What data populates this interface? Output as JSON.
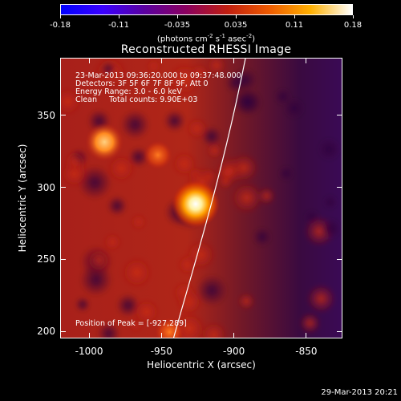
{
  "colorbar": {
    "ticks": [
      "-0.18",
      "-0.11",
      "-0.035",
      "0.035",
      "0.11",
      "0.18"
    ],
    "units_prefix": "(photons cm",
    "units_exp1": "-2",
    "units_mid1": " s",
    "units_exp2": "-1",
    "units_mid2": " asec",
    "units_exp3": "-2",
    "units_suffix": ")",
    "colors": [
      "#0000ff",
      "#3a00ff",
      "#5a00a0",
      "#8a0060",
      "#c01e10",
      "#ee5a00",
      "#ffb000",
      "#ffffff"
    ]
  },
  "title": "Reconstructed RHESSI Image",
  "annotations": {
    "line1": "23-Mar-2013 09:36:20.000 to 09:37:48.000",
    "line2": "Detectors: 3F 5F 6F 7F 8F 9F, Att 0",
    "line3": "Energy Range: 3.0 - 6.0 keV",
    "line4": "Clean     Total counts: 9.90E+03",
    "peak": "Position of Peak = [-927,289]"
  },
  "axes": {
    "xlabel": "Heliocentric X (arcsec)",
    "ylabel": "Heliocentric Y (arcsec)",
    "xticks": [
      "-1000",
      "-950",
      "-900",
      "-850"
    ],
    "yticks": [
      "350",
      "300",
      "250",
      "200"
    ],
    "xrange": [
      -1020,
      -825
    ],
    "yrange": [
      195,
      390
    ],
    "xtick_values": [
      -1000,
      -950,
      -900,
      -850
    ],
    "ytick_values": [
      350,
      300,
      250,
      200
    ]
  },
  "image": {
    "peak_position": [
      -927,
      289
    ],
    "sources": [
      {
        "x": -927,
        "y": 289,
        "intensity": 1.0
      },
      {
        "x": -990,
        "y": 332,
        "intensity": 0.7
      },
      {
        "x": -953,
        "y": 323,
        "intensity": 0.5
      },
      {
        "x": -945,
        "y": 200,
        "intensity": 0.45
      }
    ]
  },
  "footer": "29-Mar-2013 20:21"
}
